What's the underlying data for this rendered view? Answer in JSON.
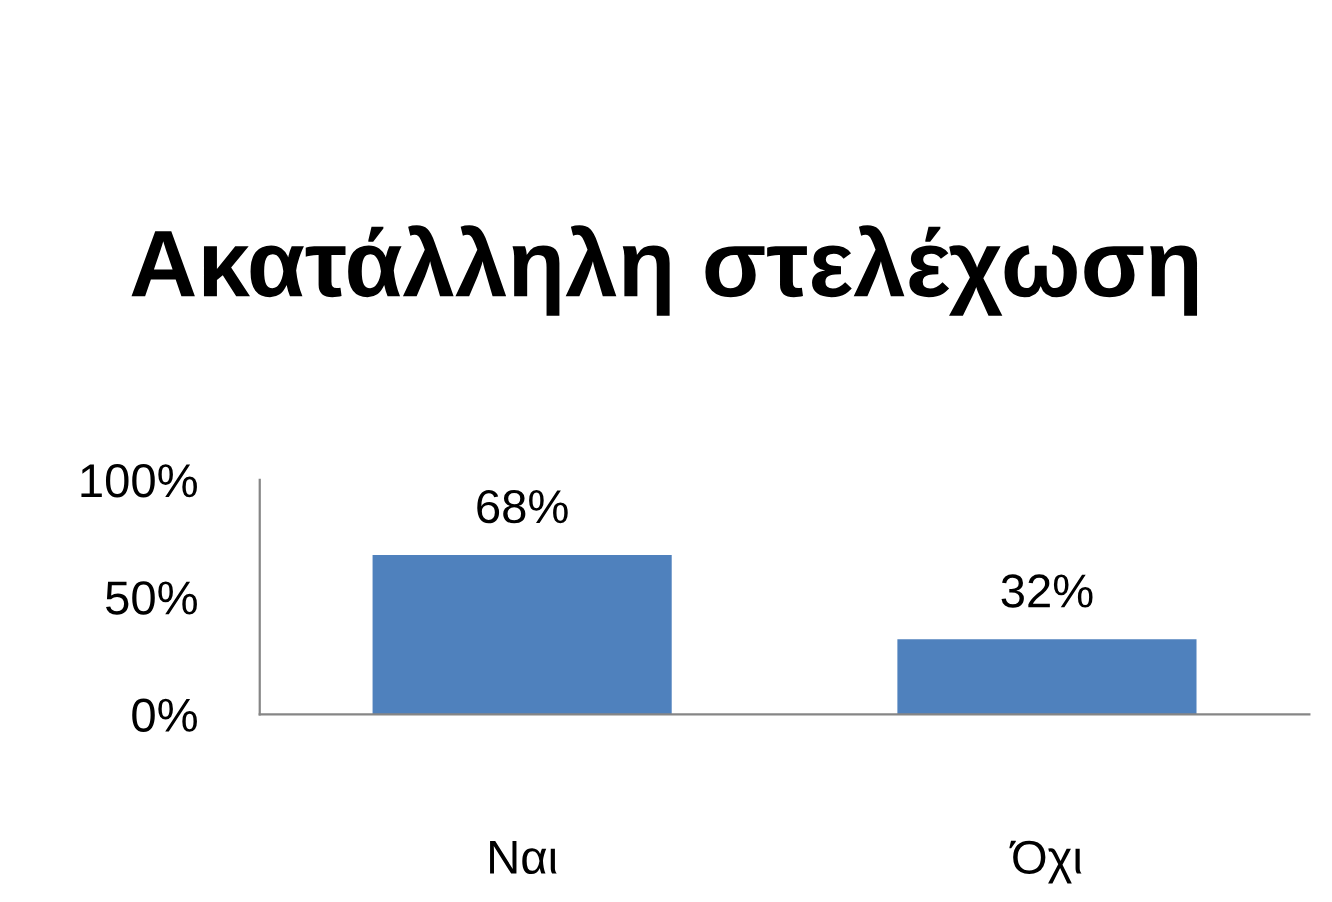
{
  "chart_data": {
    "type": "bar",
    "title": "Ακατάλληλη στελέχωση",
    "categories": [
      "Ναι",
      "Όχι"
    ],
    "values": [
      68,
      32
    ],
    "value_labels": [
      "68%",
      "32%"
    ],
    "color": "#4f81bd",
    "ylim": [
      0,
      100
    ],
    "yticks": [
      {
        "value": 0,
        "label": "0%"
      },
      {
        "value": 50,
        "label": "50%"
      },
      {
        "value": 100,
        "label": "100%"
      }
    ],
    "grid": false,
    "legend": false
  }
}
